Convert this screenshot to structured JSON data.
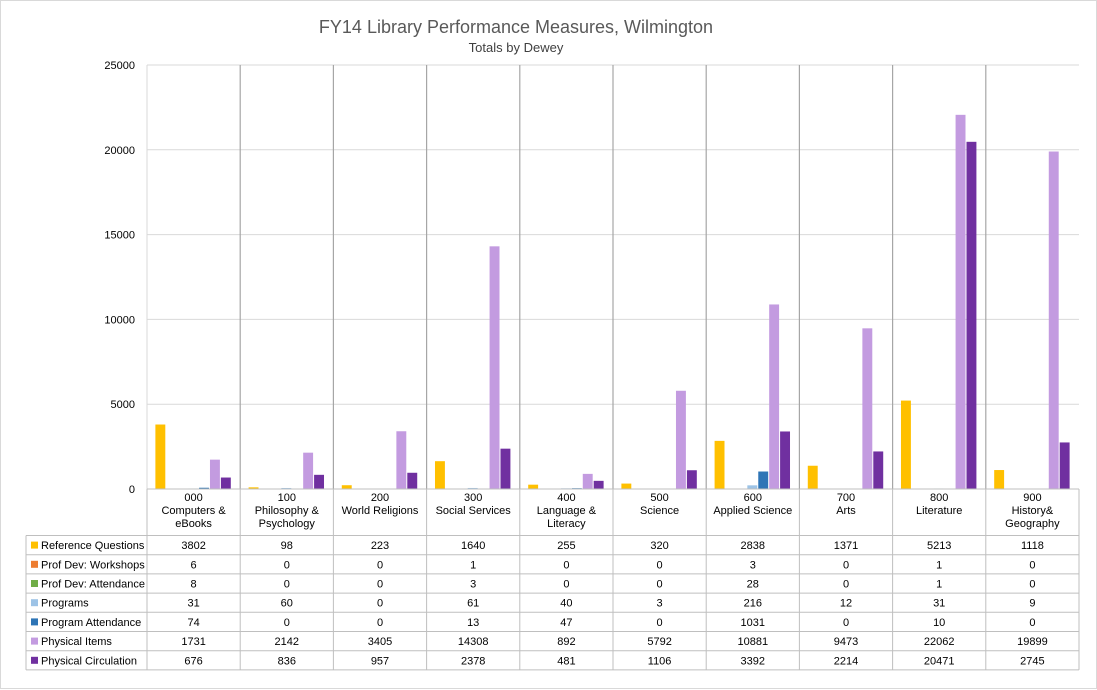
{
  "chart_data": {
    "type": "bar",
    "title": "FY14 Library Performance Measures, Wilmington",
    "subtitle": "Totals by Dewey",
    "ylim": [
      0,
      25000
    ],
    "yticks": [
      0,
      5000,
      10000,
      15000,
      20000,
      25000
    ],
    "grid": true,
    "legend": "data-table",
    "categories": [
      "000 Computers & eBooks",
      "100 Philosophy & Psychology",
      "200 World Religions",
      "300 Social Services",
      "400 Language & Literacy",
      "500 Science",
      "600 Applied Science",
      "700 Arts",
      "800 Literature",
      "900 History& Geography"
    ],
    "category_label_lines": [
      [
        "000",
        "Computers &",
        "eBooks"
      ],
      [
        "100",
        "Philosophy &",
        "Psychology"
      ],
      [
        "200",
        "World Religions"
      ],
      [
        "300",
        "Social Services"
      ],
      [
        "400",
        "Language &",
        "Literacy"
      ],
      [
        "500",
        "Science"
      ],
      [
        "600",
        "Applied Science"
      ],
      [
        "700",
        "Arts"
      ],
      [
        "800",
        "Literature"
      ],
      [
        "900",
        "History&",
        "Geography"
      ]
    ],
    "series": [
      {
        "name": "Reference Questions",
        "color": "#ffc000",
        "values": [
          3802,
          98,
          223,
          1640,
          255,
          320,
          2838,
          1371,
          5213,
          1118
        ]
      },
      {
        "name": "Prof Dev: Workshops",
        "color": "#ed7d31",
        "values": [
          6,
          0,
          0,
          1,
          0,
          0,
          3,
          0,
          1,
          0
        ]
      },
      {
        "name": "Prof Dev: Attendance",
        "color": "#70ad47",
        "values": [
          8,
          0,
          0,
          3,
          0,
          0,
          28,
          0,
          1,
          0
        ]
      },
      {
        "name": "Programs",
        "color": "#9dc3e6",
        "values": [
          31,
          60,
          0,
          61,
          40,
          3,
          216,
          12,
          31,
          9
        ]
      },
      {
        "name": "Program Attendance",
        "color": "#2e75b6",
        "values": [
          74,
          0,
          0,
          13,
          47,
          0,
          1031,
          0,
          10,
          0
        ]
      },
      {
        "name": "Physical Items",
        "color": "#c39be0",
        "values": [
          1731,
          2142,
          3405,
          14308,
          892,
          5792,
          10881,
          9473,
          22062,
          19899
        ]
      },
      {
        "name": "Physical Circulation",
        "color": "#7030a0",
        "values": [
          676,
          836,
          957,
          2378,
          481,
          1106,
          3392,
          2214,
          20471,
          2745
        ]
      }
    ]
  }
}
